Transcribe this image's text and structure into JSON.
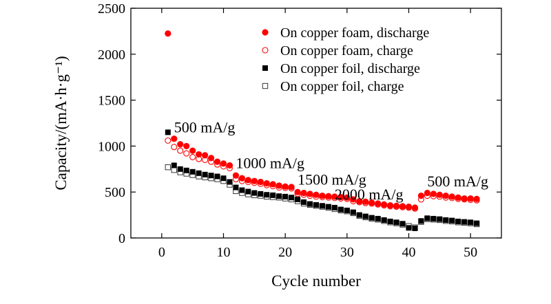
{
  "chart_data": {
    "type": "scatter",
    "xlabel": "Cycle number",
    "ylabel": "Capacity/(mA·h·g⁻¹)",
    "xlim": [
      -5,
      55
    ],
    "ylim": [
      0,
      2500
    ],
    "xticks": [
      0,
      10,
      20,
      30,
      40,
      50
    ],
    "yticks": [
      0,
      500,
      1000,
      1500,
      2000,
      2500
    ],
    "grid": false,
    "legend_position": "top-right",
    "annotations": [
      {
        "text": "500 mA/g",
        "x": 2,
        "y": 1150
      },
      {
        "text": "1000 mA/g",
        "x": 12,
        "y": 760
      },
      {
        "text": "1500 mA/g",
        "x": 22,
        "y": 580
      },
      {
        "text": "2000 mA/g",
        "x": 28,
        "y": 420
      },
      {
        "text": "500 mA/g",
        "x": 43,
        "y": 560
      }
    ],
    "series": [
      {
        "name": "On copper foam, discharge",
        "marker": "filled-circle",
        "color": "#ff0000",
        "x": [
          1,
          2,
          3,
          4,
          5,
          6,
          7,
          8,
          9,
          10,
          11,
          12,
          13,
          14,
          15,
          16,
          17,
          18,
          19,
          20,
          21,
          22,
          23,
          24,
          25,
          26,
          27,
          28,
          29,
          30,
          31,
          32,
          33,
          34,
          35,
          36,
          37,
          38,
          39,
          40,
          41,
          42,
          43,
          44,
          45,
          46,
          47,
          48,
          49,
          50,
          51
        ],
        "y": [
          2225,
          1080,
          1020,
          1000,
          950,
          910,
          900,
          870,
          830,
          810,
          790,
          680,
          650,
          630,
          620,
          610,
          595,
          585,
          570,
          560,
          555,
          500,
          490,
          480,
          470,
          460,
          455,
          450,
          445,
          440,
          420,
          400,
          395,
          385,
          375,
          365,
          355,
          350,
          345,
          340,
          330,
          460,
          490,
          480,
          470,
          460,
          450,
          440,
          430,
          430,
          425
        ]
      },
      {
        "name": "On copper foam, charge",
        "marker": "open-circle",
        "color": "#ff0000",
        "x": [
          1,
          2,
          3,
          4,
          5,
          6,
          7,
          8,
          9,
          10,
          11,
          12,
          13,
          14,
          15,
          16,
          17,
          18,
          19,
          20,
          21,
          22,
          23,
          24,
          25,
          26,
          27,
          28,
          29,
          30,
          31,
          32,
          33,
          34,
          35,
          36,
          37,
          38,
          39,
          40,
          41,
          42,
          43,
          44,
          45,
          46,
          47,
          48,
          49,
          50,
          51
        ],
        "y": [
          1060,
          990,
          950,
          920,
          880,
          860,
          850,
          830,
          800,
          780,
          760,
          640,
          620,
          610,
          600,
          590,
          575,
          565,
          550,
          545,
          540,
          480,
          470,
          460,
          450,
          445,
          440,
          435,
          430,
          425,
          400,
          390,
          380,
          375,
          365,
          355,
          345,
          340,
          335,
          330,
          320,
          420,
          460,
          455,
          450,
          440,
          435,
          425,
          420,
          415,
          410
        ]
      },
      {
        "name": "On copper foil, discharge",
        "marker": "filled-square",
        "color": "#000000",
        "x": [
          1,
          2,
          3,
          4,
          5,
          6,
          7,
          8,
          9,
          10,
          11,
          12,
          13,
          14,
          15,
          16,
          17,
          18,
          19,
          20,
          21,
          22,
          23,
          24,
          25,
          26,
          27,
          28,
          29,
          30,
          31,
          32,
          33,
          34,
          35,
          36,
          37,
          38,
          39,
          40,
          41,
          42,
          43,
          44,
          45,
          46,
          47,
          48,
          49,
          50,
          51
        ],
        "y": [
          1150,
          790,
          750,
          735,
          720,
          705,
          690,
          680,
          670,
          650,
          610,
          550,
          520,
          505,
          490,
          480,
          470,
          465,
          455,
          450,
          440,
          420,
          390,
          370,
          360,
          350,
          340,
          330,
          310,
          300,
          280,
          250,
          235,
          220,
          210,
          195,
          180,
          170,
          155,
          110,
          105,
          185,
          215,
          210,
          205,
          195,
          190,
          180,
          175,
          170,
          160
        ]
      },
      {
        "name": "On copper foil, charge",
        "marker": "open-square",
        "color": "#333333",
        "x": [
          1,
          2,
          3,
          4,
          5,
          6,
          7,
          8,
          9,
          10,
          11,
          12,
          13,
          14,
          15,
          16,
          17,
          18,
          19,
          20,
          21,
          22,
          23,
          24,
          25,
          26,
          27,
          28,
          29,
          30,
          31,
          32,
          33,
          34,
          35,
          36,
          37,
          38,
          39,
          40,
          41,
          42,
          43,
          44,
          45,
          46,
          47,
          48,
          49,
          50,
          51
        ],
        "y": [
          770,
          740,
          715,
          700,
          685,
          670,
          660,
          650,
          640,
          620,
          580,
          510,
          490,
          475,
          465,
          460,
          450,
          445,
          440,
          430,
          420,
          400,
          375,
          360,
          350,
          340,
          330,
          315,
          300,
          290,
          270,
          240,
          225,
          210,
          200,
          185,
          170,
          160,
          145,
          130,
          115,
          175,
          205,
          200,
          195,
          185,
          180,
          170,
          165,
          160,
          150
        ]
      }
    ]
  }
}
